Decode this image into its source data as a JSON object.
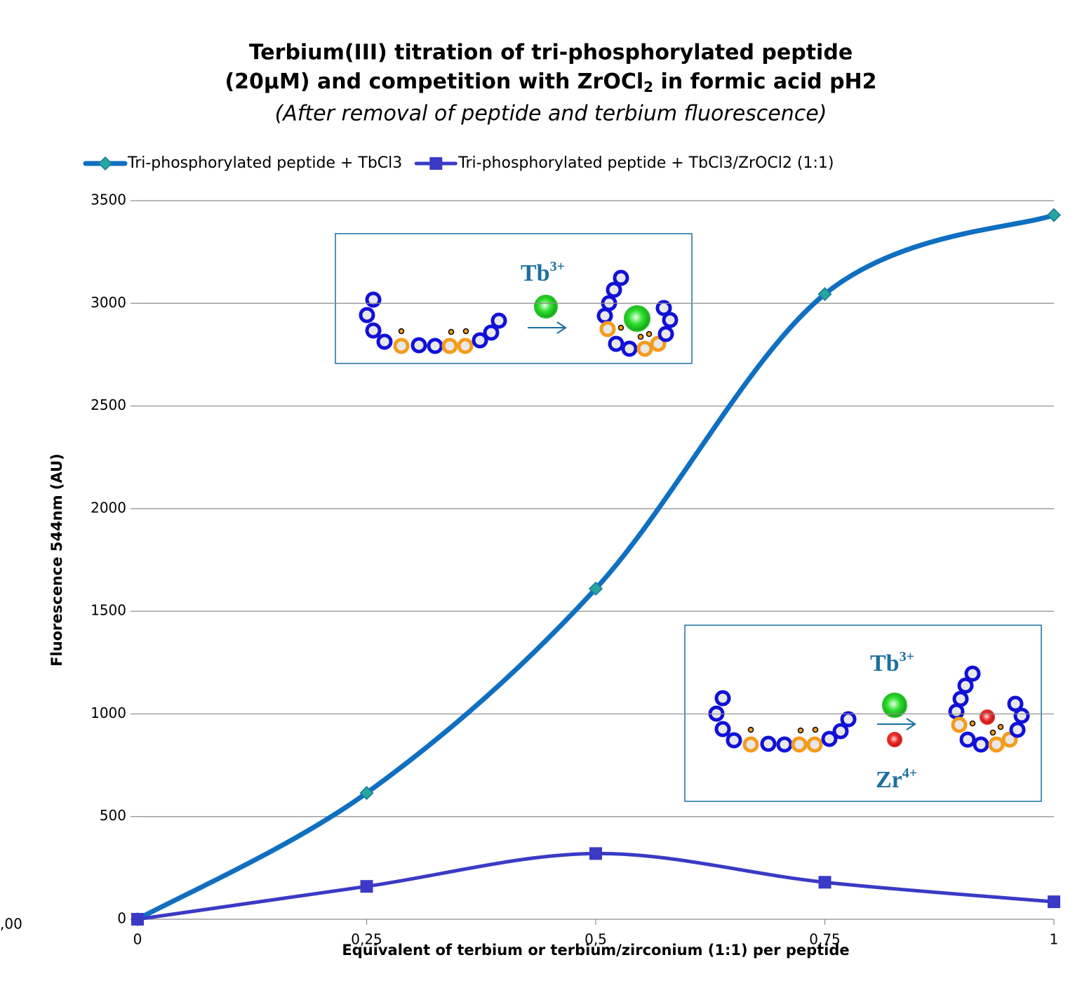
{
  "chart_data": {
    "type": "line",
    "title": [
      "Terbium(III) titration of tri-phosphorylated peptide",
      "(20µM) and competition with ZrOCl",
      "2",
      " in formic acid pH2"
    ],
    "subtitle": "(After removal of peptide and terbium fluorescence)",
    "x_label": "Equivalent of terbium or terbium/zirconium (1:1) per peptide",
    "y_label": "Fluorescence 544nm (AU)",
    "x": [
      0,
      0.25,
      0.5,
      0.75,
      1
    ],
    "series": [
      {
        "name": "Tri-phosphorylated peptide + TbCl3",
        "color": "#0f6fc0",
        "marker": "diamond",
        "marker_color": "#25a6a0",
        "values": [
          0,
          615,
          1610,
          3045,
          3430
        ]
      },
      {
        "name": "Tri-phosphorylated peptide + TbCl3/ZrOCl2 (1:1)",
        "color": "#3a3ac6",
        "marker": "square",
        "marker_color": "#3a3ac6",
        "values": [
          0,
          160,
          320,
          180,
          85
        ]
      }
    ],
    "xlim": [
      0,
      1
    ],
    "ylim": [
      0,
      3500
    ],
    "xticks": [
      0,
      {
        "value": 0.25,
        "label": "0,25"
      },
      {
        "value": 0.5,
        "label": "0,5"
      },
      {
        "value": 0.75,
        "label": "0,75"
      },
      1
    ],
    "yticks": [
      0,
      500,
      1000,
      1500,
      2000,
      2500,
      3000,
      3500
    ],
    "grid": true,
    "smooth": true,
    "legend": "top"
  },
  "insets": [
    {
      "labels": [
        {
          "ion": "Tb",
          "charge": "3+"
        }
      ]
    },
    {
      "labels": [
        {
          "ion": "Tb",
          "charge": "3+"
        },
        {
          "ion": "Zr",
          "charge": "4+"
        }
      ]
    }
  ],
  "edge_label": ",00"
}
